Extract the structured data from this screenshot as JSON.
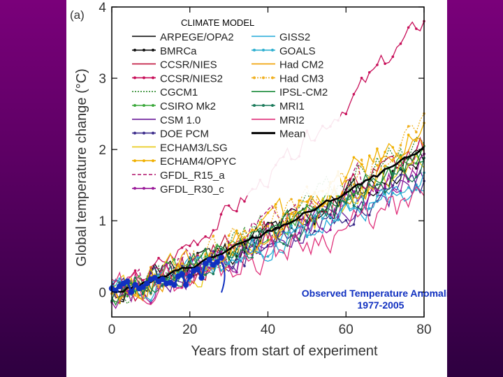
{
  "chart_data": {
    "type": "line",
    "panel_label": "(a)",
    "title": "CLIMATE MODEL",
    "xlabel": "Years from start of experiment",
    "ylabel": "Global temperature change (°C)",
    "xlim": [
      0,
      80
    ],
    "ylim": [
      -0.35,
      4
    ],
    "xticks": [
      0,
      20,
      40,
      60,
      80
    ],
    "yticks": [
      0,
      1,
      2,
      3,
      4
    ],
    "grid": false,
    "legend_position": "top-left",
    "series": [
      {
        "name": "ARPEGE/OPA2",
        "color": "#000000",
        "style": "solid",
        "marker": false,
        "trend": 1.95,
        "noise": 0.18,
        "seed": 11
      },
      {
        "name": "BMRCa",
        "color": "#111111",
        "style": "solid",
        "marker": true,
        "trend": 1.9,
        "noise": 0.15,
        "seed": 12
      },
      {
        "name": "CCSR/NIES",
        "color": "#c0143c",
        "style": "solid",
        "marker": false,
        "trend": 2.0,
        "noise": 0.2,
        "seed": 13
      },
      {
        "name": "CCSR/NIES2",
        "color": "#c8105a",
        "style": "solid",
        "marker": true,
        "trend": 3.8,
        "noise": 0.12,
        "seed": 14
      },
      {
        "name": "CGCM1",
        "color": "#2e8b2e",
        "style": "dotted",
        "marker": false,
        "trend": 2.2,
        "noise": 0.17,
        "seed": 15
      },
      {
        "name": "CSIRO Mk2",
        "color": "#3aa83a",
        "style": "solid",
        "marker": true,
        "trend": 2.0,
        "noise": 0.16,
        "seed": 16
      },
      {
        "name": "CSM 1.0",
        "color": "#6a1a9a",
        "style": "solid",
        "marker": false,
        "trend": 1.6,
        "noise": 0.18,
        "seed": 17
      },
      {
        "name": "DOE PCM",
        "color": "#3a2a8a",
        "style": "solid",
        "marker": true,
        "trend": 1.55,
        "noise": 0.16,
        "seed": 18
      },
      {
        "name": "ECHAM3/LSG",
        "color": "#e8c810",
        "style": "solid",
        "marker": false,
        "trend": 1.85,
        "noise": 0.2,
        "seed": 19
      },
      {
        "name": "ECHAM4/OPYC",
        "color": "#f0b000",
        "style": "solid",
        "marker": true,
        "trend": 2.3,
        "noise": 0.17,
        "seed": 20
      },
      {
        "name": "GFDL_R15_a",
        "color": "#b0106a",
        "style": "dashed",
        "marker": false,
        "trend": 2.1,
        "noise": 0.2,
        "seed": 21
      },
      {
        "name": "GFDL_R30_c",
        "color": "#9a1a9a",
        "style": "solid",
        "marker": true,
        "trend": 1.75,
        "noise": 0.18,
        "seed": 22
      },
      {
        "name": "GISS2",
        "color": "#20a8d8",
        "style": "solid",
        "marker": false,
        "trend": 1.5,
        "noise": 0.15,
        "seed": 23
      },
      {
        "name": "GOALS",
        "color": "#30b0d0",
        "style": "solid",
        "marker": true,
        "trend": 1.6,
        "noise": 0.16,
        "seed": 24
      },
      {
        "name": "Had CM2",
        "color": "#f0a000",
        "style": "solid",
        "marker": false,
        "trend": 2.0,
        "noise": 0.18,
        "seed": 25
      },
      {
        "name": "Had CM3",
        "color": "#f0b020",
        "style": "dotted",
        "marker": true,
        "trend": 2.3,
        "noise": 0.17,
        "seed": 26
      },
      {
        "name": "IPSL-CM2",
        "color": "#1a8a3a",
        "style": "solid",
        "marker": false,
        "trend": 1.9,
        "noise": 0.16,
        "seed": 27
      },
      {
        "name": "MRI1",
        "color": "#1a7a5a",
        "style": "solid",
        "marker": true,
        "trend": 1.8,
        "noise": 0.16,
        "seed": 28
      },
      {
        "name": "MRI2",
        "color": "#e0307a",
        "style": "solid",
        "marker": false,
        "trend": 1.3,
        "noise": 0.2,
        "seed": 29
      },
      {
        "name": "Mean",
        "color": "#000000",
        "style": "bold",
        "marker": false,
        "trend": 2.0,
        "noise": 0.03,
        "seed": 30
      }
    ],
    "observed": {
      "label_line1": "Observed Temperature Anomalies",
      "label_line2": "1977-2005",
      "color": "#1030c0",
      "x": [
        0,
        1,
        2,
        3,
        4,
        5,
        6,
        7,
        8,
        9,
        10,
        11,
        12,
        13,
        14,
        15,
        16,
        17,
        18,
        19,
        20,
        21,
        22,
        23,
        24,
        25,
        26,
        27,
        28
      ],
      "y": [
        0.05,
        0.02,
        0.08,
        0.12,
        0.15,
        0.0,
        0.1,
        0.05,
        0.07,
        0.12,
        0.18,
        0.2,
        0.15,
        0.18,
        0.12,
        0.13,
        0.1,
        0.22,
        0.25,
        0.1,
        0.22,
        0.3,
        0.32,
        0.2,
        0.4,
        0.45,
        0.38,
        0.42,
        0.48
      ]
    }
  }
}
